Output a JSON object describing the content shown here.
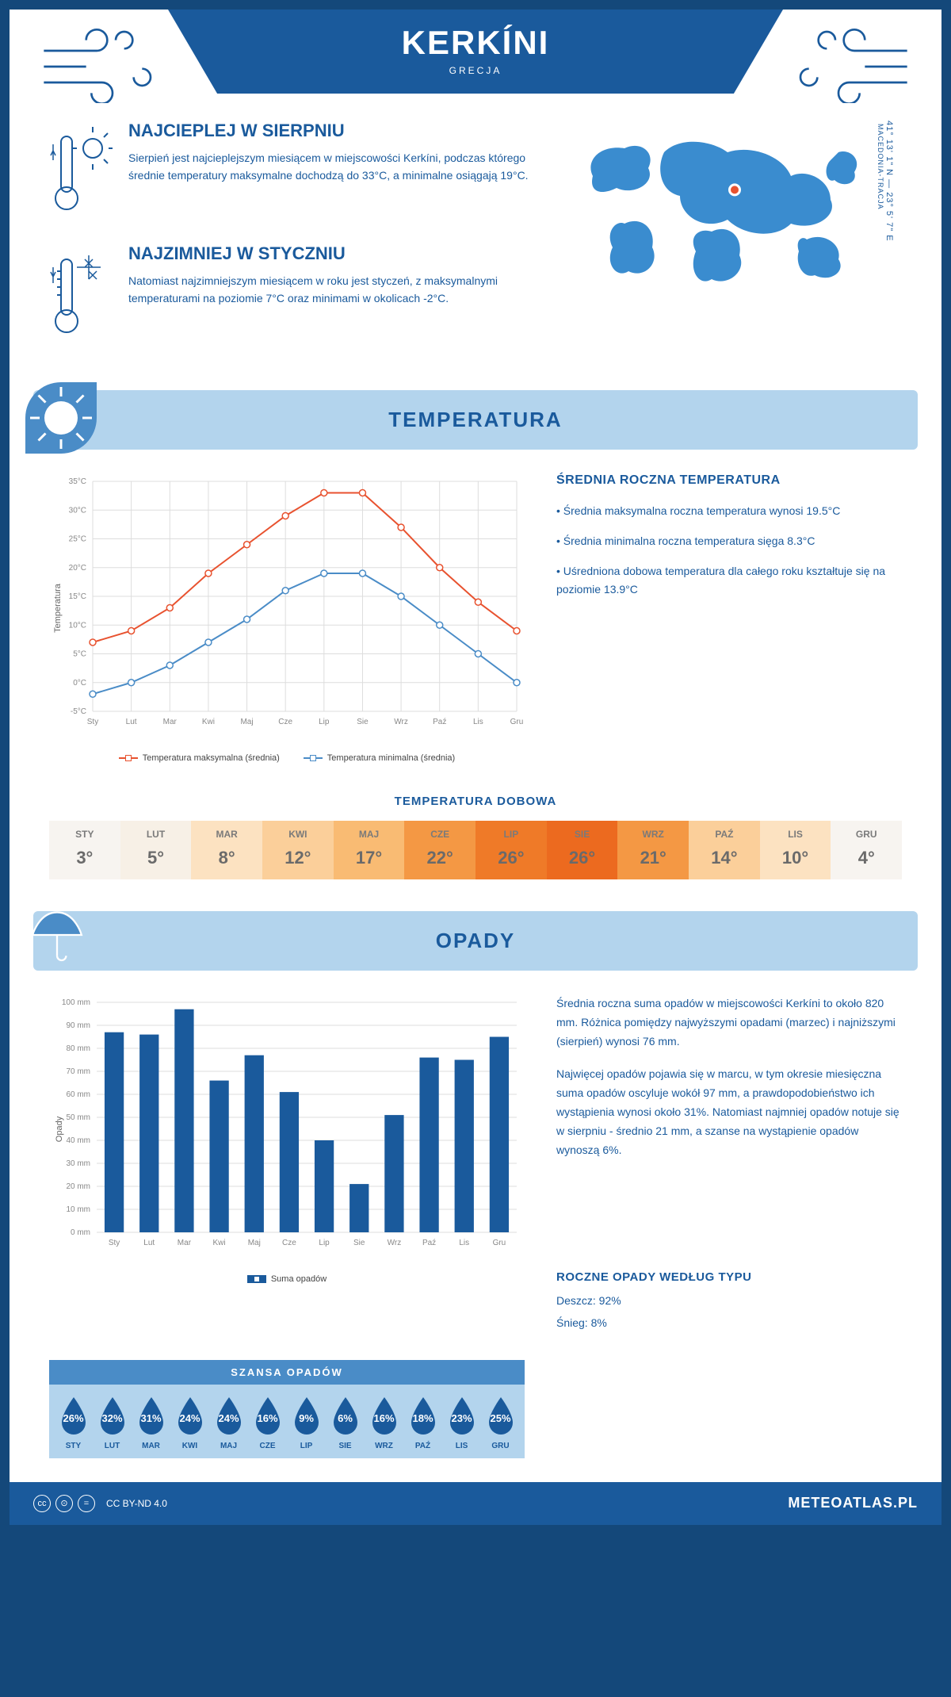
{
  "header": {
    "title": "KERKÍNI",
    "country": "GRECJA"
  },
  "map": {
    "coords": "41° 13' 1\" N — 23° 5' 7\" E",
    "region": "MACEDONIA-TRACJA",
    "marker_color": "#e8522f",
    "land_color": "#3a8ccf",
    "marker_cx_pct": 55,
    "marker_cy_pct": 38
  },
  "intro": {
    "hot": {
      "title": "NAJCIEPLEJ W SIERPNIU",
      "text": "Sierpień jest najcieplejszym miesiącem w miejscowości Kerkíni, podczas którego średnie temperatury maksymalne dochodzą do 33°C, a minimalne osiągają 19°C."
    },
    "cold": {
      "title": "NAJZIMNIEJ W STYCZNIU",
      "text": "Natomiast najzimniejszym miesiącem w roku jest styczeń, z maksymalnymi temperaturami na poziomie 7°C oraz minimami w okolicach -2°C."
    }
  },
  "temperature": {
    "section_title": "TEMPERATURA",
    "chart": {
      "type": "line",
      "months": [
        "Sty",
        "Lut",
        "Mar",
        "Kwi",
        "Maj",
        "Cze",
        "Lip",
        "Sie",
        "Wrz",
        "Paź",
        "Lis",
        "Gru"
      ],
      "y_label": "Temperatura",
      "ymin": -5,
      "ymax": 35,
      "ytick_step": 5,
      "grid_color": "#dddddd",
      "background": "#ffffff",
      "series": [
        {
          "name": "Temperatura maksymalna (średnia)",
          "color": "#e8522f",
          "values": [
            7,
            9,
            13,
            19,
            24,
            29,
            33,
            33,
            27,
            20,
            14,
            9
          ]
        },
        {
          "name": "Temperatura minimalna (średnia)",
          "color": "#4a8cc7",
          "values": [
            -2,
            0,
            3,
            7,
            11,
            16,
            19,
            19,
            15,
            10,
            5,
            0
          ]
        }
      ],
      "line_width": 2,
      "marker": "circle",
      "marker_size": 4,
      "label_fontsize": 10
    },
    "annual": {
      "title": "ŚREDNIA ROCZNA TEMPERATURA",
      "bullets": [
        "Średnia maksymalna roczna temperatura wynosi 19.5°C",
        "Średnia minimalna roczna temperatura sięga 8.3°C",
        "Uśredniona dobowa temperatura dla całego roku kształtuje się na poziomie 13.9°C"
      ]
    },
    "daily": {
      "title": "TEMPERATURA DOBOWA",
      "months": [
        "STY",
        "LUT",
        "MAR",
        "KWI",
        "MAJ",
        "CZE",
        "LIP",
        "SIE",
        "WRZ",
        "PAŹ",
        "LIS",
        "GRU"
      ],
      "values": [
        "3°",
        "5°",
        "8°",
        "12°",
        "17°",
        "22°",
        "26°",
        "26°",
        "21°",
        "14°",
        "10°",
        "4°"
      ],
      "colors": [
        "#f7f4f0",
        "#f7f0e6",
        "#fce2c1",
        "#fbcf9a",
        "#f9bb73",
        "#f49844",
        "#ef7a28",
        "#ec6a1f",
        "#f49844",
        "#fbcf9a",
        "#fce2c1",
        "#f7f4f0"
      ]
    }
  },
  "precipitation": {
    "section_title": "OPADY",
    "chart": {
      "type": "bar",
      "months": [
        "Sty",
        "Lut",
        "Mar",
        "Kwi",
        "Maj",
        "Cze",
        "Lip",
        "Sie",
        "Wrz",
        "Paź",
        "Lis",
        "Gru"
      ],
      "y_label": "Opady",
      "ymin": 0,
      "ymax": 100,
      "ytick_step": 10,
      "values": [
        87,
        86,
        97,
        66,
        77,
        61,
        40,
        21,
        51,
        76,
        75,
        85
      ],
      "bar_color": "#1a5a9c",
      "grid_color": "#dddddd",
      "legend": "Suma opadów",
      "bar_width": 0.55
    },
    "text": {
      "p1": "Średnia roczna suma opadów w miejscowości Kerkíni to około 820 mm. Różnica pomiędzy najwyższymi opadami (marzec) i najniższymi (sierpień) wynosi 76 mm.",
      "p2": "Najwięcej opadów pojawia się w marcu, w tym okresie miesięczna suma opadów oscyluje wokół 97 mm, a prawdopodobieństwo ich wystąpienia wynosi około 31%. Natomiast najmniej opadów notuje się w sierpniu - średnio 21 mm, a szanse na wystąpienie opadów wynoszą 6%."
    },
    "chance": {
      "title": "SZANSA OPADÓW",
      "months": [
        "STY",
        "LUT",
        "MAR",
        "KWI",
        "MAJ",
        "CZE",
        "LIP",
        "SIE",
        "WRZ",
        "PAŹ",
        "LIS",
        "GRU"
      ],
      "values": [
        "26%",
        "32%",
        "31%",
        "24%",
        "24%",
        "16%",
        "9%",
        "6%",
        "16%",
        "18%",
        "23%",
        "25%"
      ],
      "drop_fill": "#1a5a9c",
      "bg": "#b3d4ed"
    },
    "by_type": {
      "title": "ROCZNE OPADY WEDŁUG TYPU",
      "rain": "Deszcz: 92%",
      "snow": "Śnieg: 8%"
    }
  },
  "footer": {
    "license": "CC BY-ND 4.0",
    "brand": "METEOATLAS.PL"
  }
}
